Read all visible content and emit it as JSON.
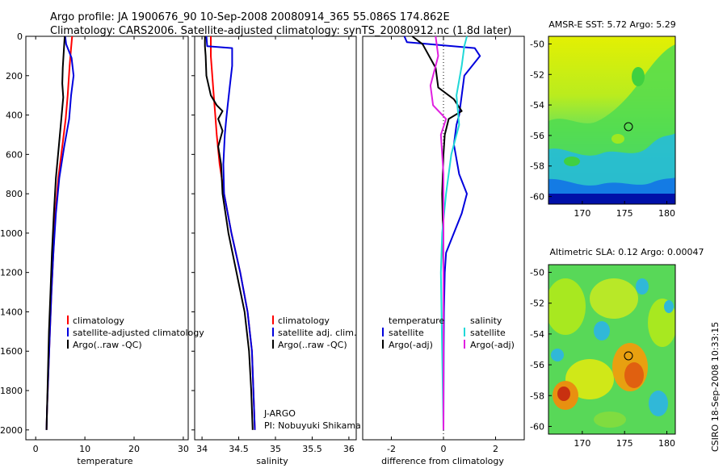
{
  "header": {
    "line1": "Argo profile: JA 1900676_90 10-Sep-2008 20080914_365 55.086S 174.862E",
    "line2": "Climatology: CARS2006. Satellite-adjusted climatology: synTS_20080912.nc (1.8d later)"
  },
  "colors": {
    "climatology": "#ff0000",
    "satellite": "#0000dd",
    "argo": "#000000",
    "argo_sal_diff": "#e020e0",
    "sal_sat": "#20d8d8"
  },
  "chart_data": [
    {
      "type": "line",
      "title": "",
      "xlabel": "temperature",
      "ylabel": "",
      "xlim": [
        -2,
        31
      ],
      "ylim": [
        2050,
        0
      ],
      "xticks": [
        "0",
        "10",
        "20",
        "30"
      ],
      "xtick_values": [
        0,
        10,
        20,
        30
      ],
      "yticks": [
        "0",
        "200",
        "400",
        "600",
        "800",
        "1000",
        "1200",
        "1400",
        "1600",
        "1800",
        "2000"
      ],
      "ytick_values": [
        0,
        200,
        400,
        600,
        800,
        1000,
        1200,
        1400,
        1600,
        1800,
        2000
      ],
      "legend": [
        "climatology",
        "satellite-adjusted climatology",
        "Argo(..raw -QC)"
      ],
      "series": [
        {
          "name": "climatology",
          "color": "#ff0000",
          "points": [
            [
              7.4,
              0
            ],
            [
              7.2,
              60
            ],
            [
              6.9,
              150
            ],
            [
              6.5,
              300
            ],
            [
              6.1,
              420
            ],
            [
              5.4,
              560
            ],
            [
              4.6,
              720
            ],
            [
              4.0,
              900
            ],
            [
              3.6,
              1100
            ],
            [
              3.2,
              1300
            ],
            [
              2.9,
              1500
            ],
            [
              2.6,
              1700
            ],
            [
              2.3,
              1900
            ],
            [
              2.2,
              2000
            ]
          ]
        },
        {
          "name": "satellite-adjusted climatology",
          "color": "#0000dd",
          "points": [
            [
              6.0,
              0
            ],
            [
              6.2,
              40
            ],
            [
              7.3,
              110
            ],
            [
              7.7,
              200
            ],
            [
              7.2,
              300
            ],
            [
              6.8,
              420
            ],
            [
              5.8,
              560
            ],
            [
              4.8,
              720
            ],
            [
              4.1,
              900
            ],
            [
              3.6,
              1100
            ],
            [
              3.2,
              1300
            ],
            [
              2.9,
              1500
            ],
            [
              2.6,
              1700
            ],
            [
              2.3,
              1900
            ],
            [
              2.2,
              2000
            ]
          ]
        },
        {
          "name": "Argo(..raw -QC)",
          "color": "#000000",
          "points": [
            [
              5.9,
              0
            ],
            [
              5.7,
              80
            ],
            [
              5.5,
              160
            ],
            [
              5.4,
              240
            ],
            [
              5.6,
              310
            ],
            [
              5.2,
              420
            ],
            [
              4.7,
              560
            ],
            [
              4.1,
              720
            ],
            [
              3.7,
              900
            ],
            [
              3.3,
              1100
            ],
            [
              3.0,
              1300
            ],
            [
              2.7,
              1500
            ],
            [
              2.5,
              1700
            ],
            [
              2.3,
              1900
            ],
            [
              2.2,
              2000
            ]
          ]
        }
      ]
    },
    {
      "type": "line",
      "xlabel": "salinity",
      "xlim": [
        33.9,
        36.1
      ],
      "ylim": [
        2050,
        0
      ],
      "xticks": [
        "34",
        "34.5",
        "35",
        "35.5",
        "36"
      ],
      "xtick_values": [
        34,
        34.5,
        35,
        35.5,
        36
      ],
      "legend": [
        "climatology",
        "satellite adj. clim.",
        "Argo(..raw -QC)"
      ],
      "annotations": [
        "J-ARGO",
        "PI: Nobuyuki Shikama"
      ],
      "series": [
        {
          "name": "climatology",
          "color": "#ff0000",
          "points": [
            [
              34.12,
              0
            ],
            [
              34.12,
              100
            ],
            [
              34.14,
              200
            ],
            [
              34.16,
              300
            ],
            [
              34.18,
              400
            ],
            [
              34.2,
              500
            ],
            [
              34.24,
              650
            ],
            [
              34.3,
              800
            ],
            [
              34.4,
              1000
            ],
            [
              34.52,
              1200
            ],
            [
              34.62,
              1400
            ],
            [
              34.68,
              1600
            ],
            [
              34.7,
              1800
            ],
            [
              34.72,
              2000
            ]
          ]
        },
        {
          "name": "satellite adj. clim.",
          "color": "#0000dd",
          "points": [
            [
              34.06,
              0
            ],
            [
              34.07,
              50
            ],
            [
              34.41,
              60
            ],
            [
              34.41,
              150
            ],
            [
              34.38,
              250
            ],
            [
              34.35,
              350
            ],
            [
              34.33,
              420
            ],
            [
              34.31,
              500
            ],
            [
              34.29,
              650
            ],
            [
              34.3,
              800
            ],
            [
              34.4,
              1000
            ],
            [
              34.52,
              1200
            ],
            [
              34.62,
              1400
            ],
            [
              34.68,
              1600
            ],
            [
              34.7,
              1800
            ],
            [
              34.72,
              2000
            ]
          ]
        },
        {
          "name": "Argo(..raw -QC)",
          "color": "#000000",
          "points": [
            [
              34.04,
              0
            ],
            [
              34.04,
              50
            ],
            [
              34.05,
              100
            ],
            [
              34.06,
              200
            ],
            [
              34.12,
              300
            ],
            [
              34.2,
              350
            ],
            [
              34.28,
              380
            ],
            [
              34.22,
              420
            ],
            [
              34.28,
              480
            ],
            [
              34.22,
              560
            ],
            [
              34.26,
              650
            ],
            [
              34.28,
              800
            ],
            [
              34.36,
              1000
            ],
            [
              34.47,
              1200
            ],
            [
              34.58,
              1400
            ],
            [
              34.64,
              1600
            ],
            [
              34.67,
              1800
            ],
            [
              34.69,
              2000
            ]
          ]
        }
      ]
    },
    {
      "type": "line",
      "xlabel": "difference from climatology",
      "xlim": [
        -3.1,
        3.1
      ],
      "ylim": [
        2050,
        0
      ],
      "xticks": [
        "-2",
        "0",
        "2"
      ],
      "xtick_values": [
        -2,
        0,
        2
      ],
      "legend_temperature_title": "temperature",
      "legend_salinity_title": "salinity",
      "legend": [
        "satellite",
        "Argo(-adj)",
        "satellite",
        "Argo(-adj)"
      ],
      "series": [
        {
          "name": "temperature satellite",
          "color": "#0000dd",
          "points": [
            [
              -1.5,
              0
            ],
            [
              -1.4,
              30
            ],
            [
              1.2,
              60
            ],
            [
              1.4,
              100
            ],
            [
              0.8,
              200
            ],
            [
              0.7,
              300
            ],
            [
              0.6,
              400
            ],
            [
              0.5,
              450
            ],
            [
              0.4,
              550
            ],
            [
              0.6,
              700
            ],
            [
              0.9,
              800
            ],
            [
              0.7,
              900
            ],
            [
              0.4,
              1000
            ],
            [
              0.1,
              1100
            ],
            [
              0.05,
              1200
            ],
            [
              0.02,
              1400
            ],
            [
              0.01,
              1600
            ],
            [
              0.0,
              2000
            ]
          ]
        },
        {
          "name": "temperature Argo(-adj)",
          "color": "#000000",
          "points": [
            [
              -1.2,
              0
            ],
            [
              -0.8,
              40
            ],
            [
              -0.3,
              160
            ],
            [
              -0.2,
              260
            ],
            [
              0.4,
              320
            ],
            [
              0.7,
              380
            ],
            [
              0.2,
              420
            ],
            [
              0.05,
              500
            ],
            [
              0.0,
              600
            ],
            [
              -0.05,
              800
            ],
            [
              -0.02,
              1000
            ],
            [
              0.0,
              1200
            ],
            [
              0.0,
              1600
            ],
            [
              0.0,
              2000
            ]
          ]
        },
        {
          "name": "salinity satellite",
          "color": "#20d8d8",
          "points": [
            [
              0.9,
              0
            ],
            [
              0.8,
              50
            ],
            [
              0.7,
              150
            ],
            [
              0.5,
              300
            ],
            [
              0.6,
              450
            ],
            [
              0.3,
              600
            ],
            [
              0.1,
              800
            ],
            [
              -0.05,
              1000
            ],
            [
              -0.1,
              1200
            ],
            [
              -0.05,
              1600
            ],
            [
              0.0,
              2000
            ]
          ]
        },
        {
          "name": "salinity Argo(-adj)",
          "color": "#e020e0",
          "points": [
            [
              -0.3,
              0
            ],
            [
              -0.2,
              100
            ],
            [
              -0.5,
              250
            ],
            [
              -0.4,
              350
            ],
            [
              0.1,
              420
            ],
            [
              -0.1,
              500
            ],
            [
              0.0,
              700
            ],
            [
              0.0,
              1000
            ],
            [
              0.0,
              2000
            ]
          ]
        }
      ]
    },
    {
      "type": "heatmap",
      "title": "AMSR-E SST: 5.72 Argo: 5.29",
      "xlim": [
        166,
        181
      ],
      "ylim": [
        -60.5,
        -49.5
      ],
      "xticks": [
        "170",
        "175",
        "180"
      ],
      "xtick_values": [
        170,
        175,
        180
      ],
      "yticks": [
        "-50",
        "-52",
        "-54",
        "-56",
        "-58",
        "-60"
      ],
      "ytick_values": [
        -50,
        -52,
        -54,
        -56,
        -58,
        -60
      ],
      "marker": [
        174.862,
        -55.086
      ]
    },
    {
      "type": "heatmap",
      "title": "Altimetric SLA: 0.12 Argo: 0.00047",
      "xlim": [
        166,
        181
      ],
      "ylim": [
        -60.5,
        -49.5
      ],
      "xticks": [
        "170",
        "175",
        "180"
      ],
      "xtick_values": [
        170,
        175,
        180
      ],
      "yticks": [
        "-50",
        "-52",
        "-54",
        "-56",
        "-58",
        "-60"
      ],
      "ytick_values": [
        -50,
        -52,
        -54,
        -56,
        -58,
        -60
      ],
      "marker": [
        174.862,
        -55.086
      ]
    }
  ],
  "footer": {
    "credit": "CSIRO 18-Sep-2008 10:33:15"
  }
}
